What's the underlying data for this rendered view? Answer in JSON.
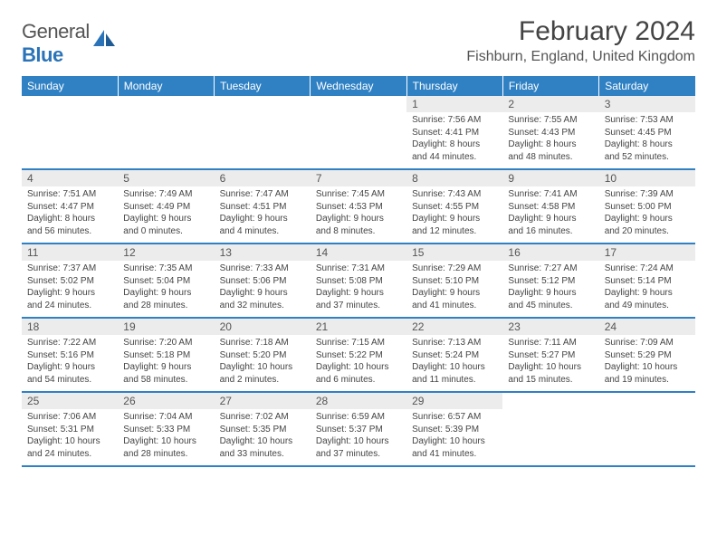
{
  "brand": {
    "part1": "General",
    "part2": "Blue"
  },
  "title": "February 2024",
  "location": "Fishburn, England, United Kingdom",
  "header_bg": "#2f81c4",
  "daynum_bg": "#ececec",
  "day_names": [
    "Sunday",
    "Monday",
    "Tuesday",
    "Wednesday",
    "Thursday",
    "Friday",
    "Saturday"
  ],
  "weeks": [
    [
      {
        "n": "",
        "sr": "",
        "ss": "",
        "dl": ""
      },
      {
        "n": "",
        "sr": "",
        "ss": "",
        "dl": ""
      },
      {
        "n": "",
        "sr": "",
        "ss": "",
        "dl": ""
      },
      {
        "n": "",
        "sr": "",
        "ss": "",
        "dl": ""
      },
      {
        "n": "1",
        "sr": "7:56 AM",
        "ss": "4:41 PM",
        "dl": "8 hours and 44 minutes."
      },
      {
        "n": "2",
        "sr": "7:55 AM",
        "ss": "4:43 PM",
        "dl": "8 hours and 48 minutes."
      },
      {
        "n": "3",
        "sr": "7:53 AM",
        "ss": "4:45 PM",
        "dl": "8 hours and 52 minutes."
      }
    ],
    [
      {
        "n": "4",
        "sr": "7:51 AM",
        "ss": "4:47 PM",
        "dl": "8 hours and 56 minutes."
      },
      {
        "n": "5",
        "sr": "7:49 AM",
        "ss": "4:49 PM",
        "dl": "9 hours and 0 minutes."
      },
      {
        "n": "6",
        "sr": "7:47 AM",
        "ss": "4:51 PM",
        "dl": "9 hours and 4 minutes."
      },
      {
        "n": "7",
        "sr": "7:45 AM",
        "ss": "4:53 PM",
        "dl": "9 hours and 8 minutes."
      },
      {
        "n": "8",
        "sr": "7:43 AM",
        "ss": "4:55 PM",
        "dl": "9 hours and 12 minutes."
      },
      {
        "n": "9",
        "sr": "7:41 AM",
        "ss": "4:58 PM",
        "dl": "9 hours and 16 minutes."
      },
      {
        "n": "10",
        "sr": "7:39 AM",
        "ss": "5:00 PM",
        "dl": "9 hours and 20 minutes."
      }
    ],
    [
      {
        "n": "11",
        "sr": "7:37 AM",
        "ss": "5:02 PM",
        "dl": "9 hours and 24 minutes."
      },
      {
        "n": "12",
        "sr": "7:35 AM",
        "ss": "5:04 PM",
        "dl": "9 hours and 28 minutes."
      },
      {
        "n": "13",
        "sr": "7:33 AM",
        "ss": "5:06 PM",
        "dl": "9 hours and 32 minutes."
      },
      {
        "n": "14",
        "sr": "7:31 AM",
        "ss": "5:08 PM",
        "dl": "9 hours and 37 minutes."
      },
      {
        "n": "15",
        "sr": "7:29 AM",
        "ss": "5:10 PM",
        "dl": "9 hours and 41 minutes."
      },
      {
        "n": "16",
        "sr": "7:27 AM",
        "ss": "5:12 PM",
        "dl": "9 hours and 45 minutes."
      },
      {
        "n": "17",
        "sr": "7:24 AM",
        "ss": "5:14 PM",
        "dl": "9 hours and 49 minutes."
      }
    ],
    [
      {
        "n": "18",
        "sr": "7:22 AM",
        "ss": "5:16 PM",
        "dl": "9 hours and 54 minutes."
      },
      {
        "n": "19",
        "sr": "7:20 AM",
        "ss": "5:18 PM",
        "dl": "9 hours and 58 minutes."
      },
      {
        "n": "20",
        "sr": "7:18 AM",
        "ss": "5:20 PM",
        "dl": "10 hours and 2 minutes."
      },
      {
        "n": "21",
        "sr": "7:15 AM",
        "ss": "5:22 PM",
        "dl": "10 hours and 6 minutes."
      },
      {
        "n": "22",
        "sr": "7:13 AM",
        "ss": "5:24 PM",
        "dl": "10 hours and 11 minutes."
      },
      {
        "n": "23",
        "sr": "7:11 AM",
        "ss": "5:27 PM",
        "dl": "10 hours and 15 minutes."
      },
      {
        "n": "24",
        "sr": "7:09 AM",
        "ss": "5:29 PM",
        "dl": "10 hours and 19 minutes."
      }
    ],
    [
      {
        "n": "25",
        "sr": "7:06 AM",
        "ss": "5:31 PM",
        "dl": "10 hours and 24 minutes."
      },
      {
        "n": "26",
        "sr": "7:04 AM",
        "ss": "5:33 PM",
        "dl": "10 hours and 28 minutes."
      },
      {
        "n": "27",
        "sr": "7:02 AM",
        "ss": "5:35 PM",
        "dl": "10 hours and 33 minutes."
      },
      {
        "n": "28",
        "sr": "6:59 AM",
        "ss": "5:37 PM",
        "dl": "10 hours and 37 minutes."
      },
      {
        "n": "29",
        "sr": "6:57 AM",
        "ss": "5:39 PM",
        "dl": "10 hours and 41 minutes."
      },
      {
        "n": "",
        "sr": "",
        "ss": "",
        "dl": ""
      },
      {
        "n": "",
        "sr": "",
        "ss": "",
        "dl": ""
      }
    ]
  ],
  "labels": {
    "sunrise": "Sunrise: ",
    "sunset": "Sunset: ",
    "daylight": "Daylight: "
  }
}
